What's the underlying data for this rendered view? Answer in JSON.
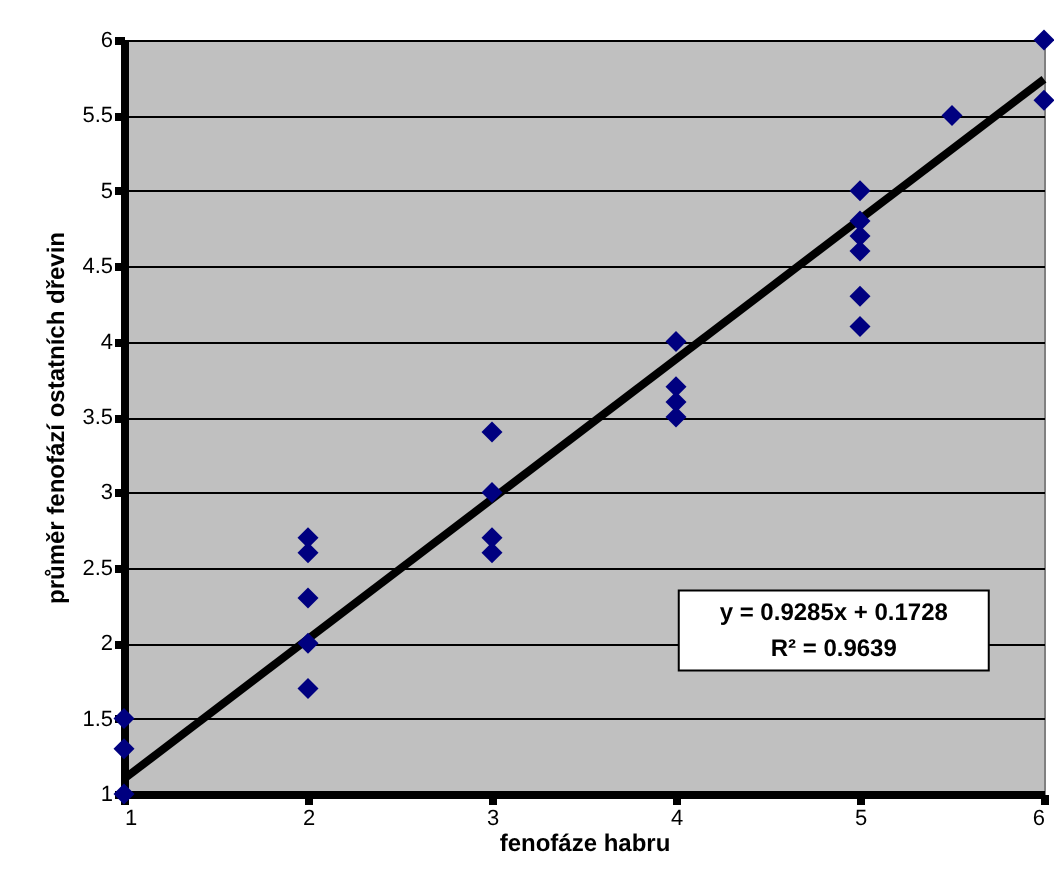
{
  "chart_data": {
    "type": "scatter",
    "xlabel": "fenofáze habru",
    "ylabel": "průměr fenofází ostatních dřevin",
    "xlim": [
      1,
      6
    ],
    "xticks": [
      1,
      2,
      3,
      4,
      5,
      6
    ],
    "ylim": [
      1,
      6
    ],
    "yticks": [
      1,
      1.5,
      2,
      2.5,
      3,
      3.5,
      4,
      4.5,
      5,
      5.5,
      6
    ],
    "grid": "y",
    "marker": "diamond",
    "annotations": [
      "y = 0.9285x + 0.1728",
      "R² = 0.9639"
    ],
    "series": [
      {
        "type": "line",
        "marker": "none",
        "color": "#000000",
        "x": [
          1,
          6
        ],
        "values": [
          1.1,
          5.74
        ]
      },
      {
        "color": "#000080",
        "x": [
          1,
          1,
          1,
          2,
          2,
          2,
          2,
          2,
          3,
          3,
          3,
          3,
          4,
          4,
          4,
          4,
          5,
          5,
          5,
          5,
          5,
          5,
          5.5,
          6,
          6
        ],
        "values": [
          1,
          1.3,
          1.5,
          1.7,
          2,
          2.3,
          2.6,
          2.7,
          2.6,
          2.7,
          3,
          3.4,
          3.5,
          3.6,
          3.7,
          4,
          4.1,
          4.3,
          4.6,
          4.7,
          4.8,
          5,
          5.5,
          5.6,
          6
        ]
      }
    ]
  }
}
